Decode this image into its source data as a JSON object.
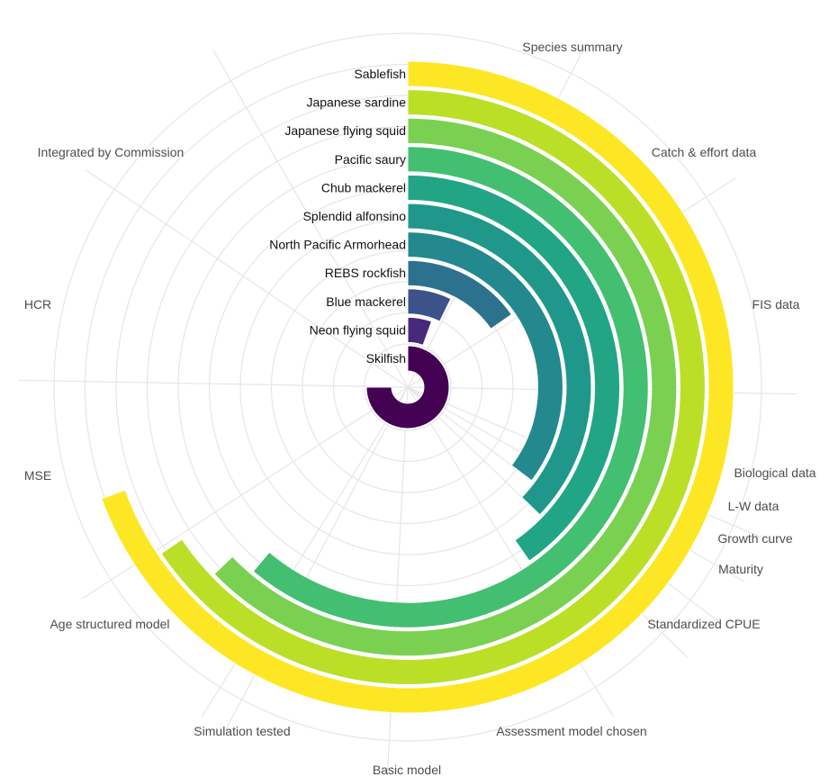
{
  "chart_data": {
    "type": "radial-bar",
    "title": "",
    "stages": [
      "Species summary",
      "Catch & effort data",
      "FIS data",
      "Biological data",
      "L-W data",
      "Growth curve",
      "Maturity",
      "Standardized CPUE",
      "Assessment model chosen",
      "Basic model",
      "Simulation tested",
      "Age structured model",
      "MSE",
      "HCR",
      "Integrated by Commission"
    ],
    "stage_angles_deg": [
      27.5,
      57.5,
      91,
      113,
      120,
      127,
      134,
      148,
      212,
      183,
      208,
      237,
      271,
      304,
      330
    ],
    "series": [
      {
        "name": "Sablefish",
        "end_deg": 250,
        "color": "#FDE725"
      },
      {
        "name": "Japanese sardine",
        "end_deg": 236,
        "color": "#BBDF27"
      },
      {
        "name": "Japanese flying squid",
        "end_deg": 226,
        "color": "#7AD151"
      },
      {
        "name": "Pacific saury",
        "end_deg": 220,
        "color": "#43BF71"
      },
      {
        "name": "Chub mackerel",
        "end_deg": 145,
        "color": "#21A585"
      },
      {
        "name": "Splendid alfonsino",
        "end_deg": 134,
        "color": "#1F988B"
      },
      {
        "name": "North Pacific Armorhead",
        "end_deg": 127,
        "color": "#23898E"
      },
      {
        "name": "REBS rockfish",
        "end_deg": 55,
        "color": "#2C728E"
      },
      {
        "name": "Blue mackerel",
        "end_deg": 26,
        "color": "#3B528B"
      },
      {
        "name": "Neon flying squid",
        "end_deg": 20,
        "color": "#482878"
      },
      {
        "name": "Skilfish",
        "end_deg": 270,
        "color": "#440154"
      }
    ],
    "legend": "none",
    "grid": true
  }
}
